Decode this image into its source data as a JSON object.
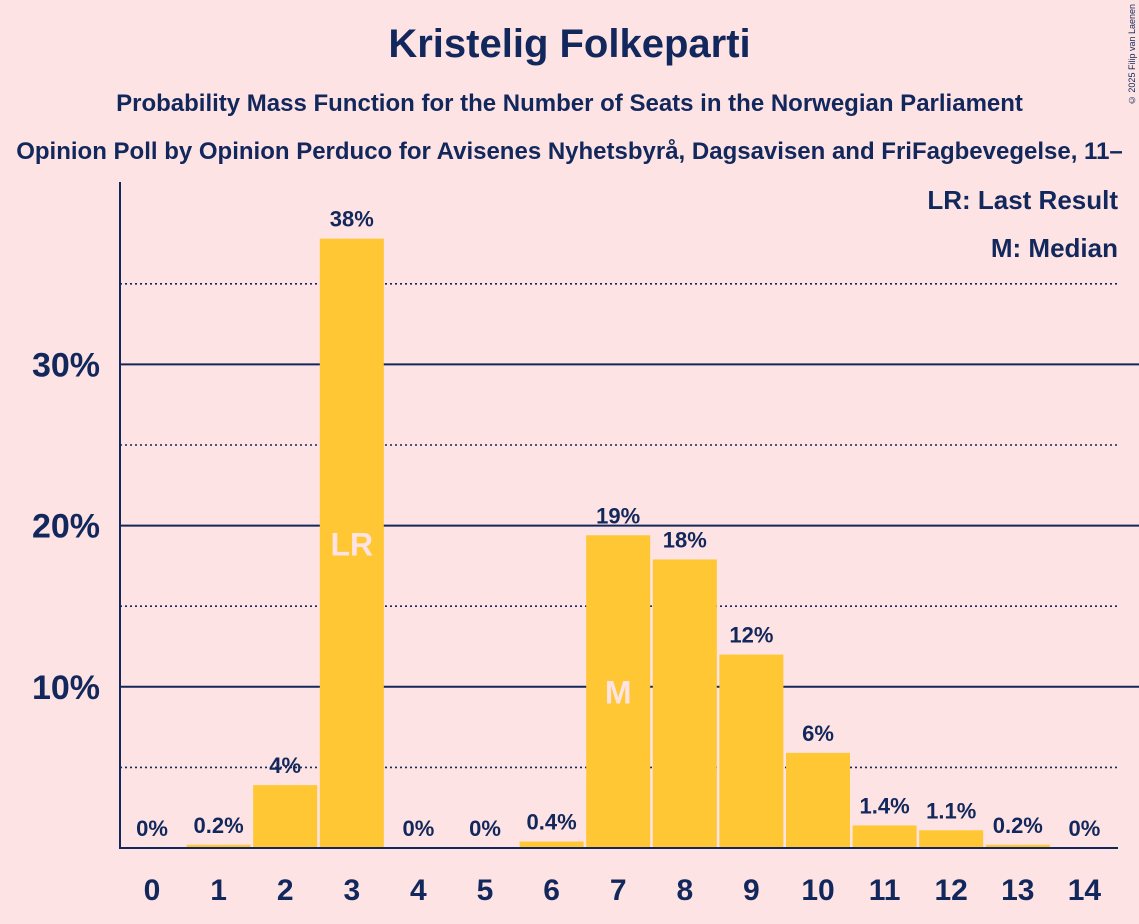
{
  "title": "Kristelig Folkeparti",
  "subtitle": "Probability Mass Function for the Number of Seats in the Norwegian Parliament",
  "subtitle2": "Opinion Poll by Opinion Perduco for Avisenes Nyhetsbyrå, Dagsavisen and FriFagbevegelse, 11–",
  "copyright": "© 2025 Filip van Laenen",
  "colors": {
    "background": "#fde3e3",
    "bar": "#ffc733",
    "text": "#12275b"
  },
  "legend": {
    "lr": "LR: Last Result",
    "m": "M: Median"
  },
  "chart_data": {
    "type": "bar",
    "categories": [
      "0",
      "1",
      "2",
      "3",
      "4",
      "5",
      "6",
      "7",
      "8",
      "9",
      "10",
      "11",
      "12",
      "13",
      "14"
    ],
    "values": [
      0,
      0.2,
      3.9,
      37.8,
      0,
      0,
      0.4,
      19.4,
      17.9,
      12.0,
      5.9,
      1.4,
      1.1,
      0.2,
      0
    ],
    "labels": [
      "0%",
      "0.2%",
      "4%",
      "38%",
      "0%",
      "0%",
      "0.4%",
      "19%",
      "18%",
      "12%",
      "6%",
      "1.4%",
      "1.1%",
      "0.2%",
      "0%"
    ],
    "ylim": [
      0,
      40
    ],
    "yticks": [
      10,
      20,
      30
    ],
    "ytick_labels": [
      "10%",
      "20%",
      "30%"
    ],
    "dotted_lines": [
      5,
      15,
      25,
      35
    ],
    "last_result": {
      "category": "3",
      "marker": "LR"
    },
    "median": {
      "category": "7",
      "marker": "M"
    },
    "legend_position": "top-right"
  }
}
